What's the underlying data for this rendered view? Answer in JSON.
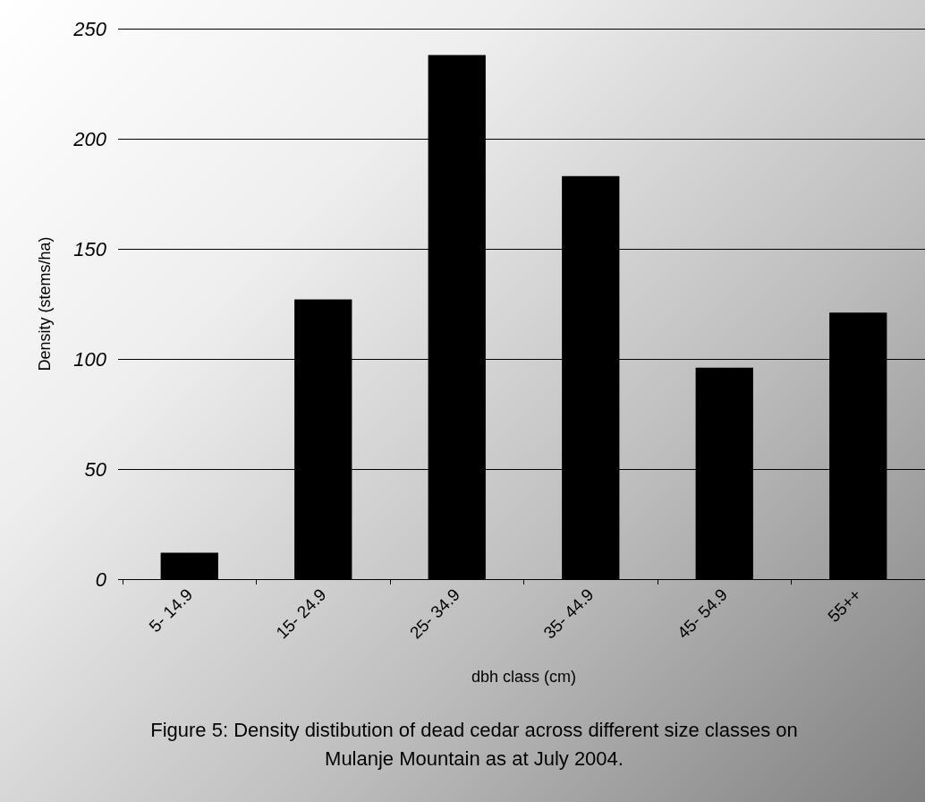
{
  "chart_data": {
    "type": "bar",
    "categories": [
      "5- 14.9",
      "15- 24.9",
      "25- 34.9",
      "35- 44.9",
      "45- 54.9",
      "55++"
    ],
    "values": [
      12,
      127,
      238,
      183,
      96,
      121
    ],
    "color": "#000000",
    "ylim": [
      0,
      250
    ],
    "yticks": [
      0,
      50,
      100,
      150,
      200,
      250
    ],
    "grid": "y",
    "xlabel": "dbh class (cm)",
    "ylabel": "Density (stems/ha)",
    "annotations": [
      "Figure 5: Density distibution of dead cedar across different size classes on Mulanje Mountain as at July 2004."
    ]
  }
}
